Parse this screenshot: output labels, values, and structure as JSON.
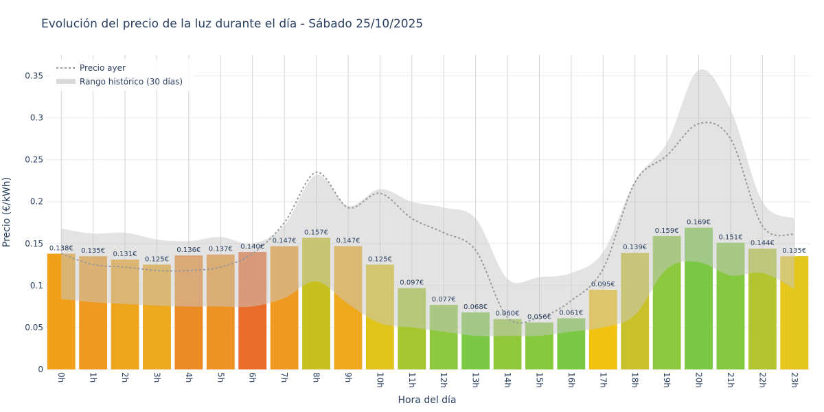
{
  "chart_data": {
    "type": "bar",
    "title": "Evolución del precio de la luz durante el día - Sábado 25/10/2025",
    "xlabel": "Hora del día",
    "ylabel": "Precio (€/kWh)",
    "ylim": [
      0,
      0.375
    ],
    "yticks": [
      0,
      0.05,
      0.1,
      0.15,
      0.2,
      0.25,
      0.3,
      0.35
    ],
    "ytick_labels": [
      "0",
      "0.05",
      "0.1",
      "0.15",
      "0.2",
      "0.25",
      "0.3",
      "0.35"
    ],
    "categories": [
      "0h",
      "1h",
      "2h",
      "3h",
      "4h",
      "5h",
      "6h",
      "7h",
      "8h",
      "9h",
      "10h",
      "11h",
      "12h",
      "13h",
      "14h",
      "15h",
      "16h",
      "17h",
      "18h",
      "19h",
      "20h",
      "21h",
      "22h",
      "23h"
    ],
    "values": [
      0.138,
      0.135,
      0.131,
      0.125,
      0.136,
      0.137,
      0.14,
      0.147,
      0.157,
      0.147,
      0.125,
      0.097,
      0.077,
      0.068,
      0.06,
      0.056,
      0.061,
      0.095,
      0.139,
      0.159,
      0.169,
      0.151,
      0.144,
      0.135
    ],
    "value_labels": [
      "0.138€",
      "0.135€",
      "0.131€",
      "0.125€",
      "0.136€",
      "0.137€",
      "0.140€",
      "0.147€",
      "0.157€",
      "0.147€",
      "0.125€",
      "0.097€",
      "0.077€",
      "0.068€",
      "0.060€",
      "0.056€",
      "0.061€",
      "0.095€",
      "0.139€",
      "0.159€",
      "0.169€",
      "0.151€",
      "0.144€",
      "0.135€"
    ],
    "bar_colors": [
      "#f0a01a",
      "#ee9a20",
      "#eda51c",
      "#eca81e",
      "#ec8a26",
      "#ee9224",
      "#ea6c2a",
      "#ee9a20",
      "#c6c11e",
      "#eeaa1c",
      "#e0c41a",
      "#a6c630",
      "#8dc83e",
      "#7ac844",
      "#92c83c",
      "#86c83e",
      "#7ac844",
      "#f1c30f",
      "#c8c12c",
      "#8dc83e",
      "#7ac844",
      "#84c840",
      "#b2c430",
      "#e4c61c"
    ],
    "series": [
      {
        "name": "Precio ayer",
        "type": "line",
        "color": "#999999",
        "values": [
          0.138,
          0.125,
          0.122,
          0.118,
          0.118,
          0.122,
          0.138,
          0.175,
          0.235,
          0.193,
          0.21,
          0.18,
          0.163,
          0.142,
          0.062,
          0.062,
          0.082,
          0.12,
          0.223,
          0.255,
          0.293,
          0.275,
          0.171,
          0.161
        ]
      },
      {
        "name": "Rango histórico (30 días)",
        "type": "area",
        "color": "#d9d9d9",
        "upper": [
          0.168,
          0.162,
          0.163,
          0.155,
          0.153,
          0.158,
          0.15,
          0.172,
          0.232,
          0.195,
          0.215,
          0.2,
          0.193,
          0.18,
          0.108,
          0.11,
          0.115,
          0.14,
          0.225,
          0.27,
          0.357,
          0.31,
          0.2,
          0.18
        ],
        "lower": [
          0.084,
          0.08,
          0.078,
          0.076,
          0.075,
          0.075,
          0.075,
          0.085,
          0.105,
          0.078,
          0.055,
          0.05,
          0.045,
          0.04,
          0.04,
          0.04,
          0.045,
          0.05,
          0.065,
          0.12,
          0.128,
          0.112,
          0.115,
          0.096
        ]
      }
    ],
    "grid": true,
    "legend_position": "top-left"
  }
}
